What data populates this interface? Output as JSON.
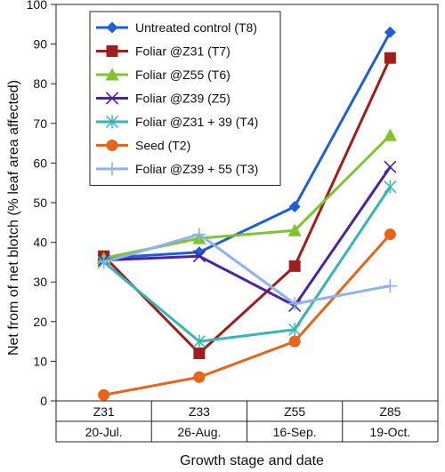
{
  "chart_data": {
    "type": "line",
    "categories": [
      {
        "stage": "Z31",
        "date": "20-Jul."
      },
      {
        "stage": "Z33",
        "date": "26-Aug."
      },
      {
        "stage": "Z55",
        "date": "16-Sep."
      },
      {
        "stage": "Z85",
        "date": "19-Oct."
      }
    ],
    "xlabel": "Growth stage and date",
    "ylabel": "Net from of net blotch (% leaf area affected)",
    "ylim": [
      0,
      100
    ],
    "yticks": [
      0,
      10,
      20,
      30,
      40,
      50,
      60,
      70,
      80,
      90,
      100
    ],
    "grid": false,
    "legend_position": "top-left",
    "series": [
      {
        "name": "Untreated control (T8)",
        "color": "#1f5fd6",
        "marker": "diamond",
        "values": [
          36,
          37.5,
          49,
          93
        ]
      },
      {
        "name": "Foliar @Z31 (T7)",
        "color": "#a31c1c",
        "marker": "square",
        "values": [
          36.5,
          12,
          34,
          86.5
        ]
      },
      {
        "name": "Foliar @Z55 (T6)",
        "color": "#7cc62a",
        "marker": "triangle",
        "values": [
          36,
          41,
          43,
          67
        ]
      },
      {
        "name": "Foliar @Z39 (Z5)",
        "color": "#4a22a8",
        "marker": "x",
        "values": [
          35.5,
          36.5,
          24,
          59
        ]
      },
      {
        "name": "Foliar @Z31 + 39 (T4)",
        "color": "#35b6b6",
        "marker": "asterisk",
        "values": [
          35,
          15,
          18,
          54
        ]
      },
      {
        "name": "Seed (T2)",
        "color": "#e8641a",
        "marker": "circle",
        "values": [
          1.5,
          6,
          15,
          42
        ]
      },
      {
        "name": "Foliar @Z39 + 55 (T3)",
        "color": "#8fb2ee",
        "marker": "plus",
        "values": [
          35,
          42,
          24.5,
          29
        ]
      }
    ]
  }
}
